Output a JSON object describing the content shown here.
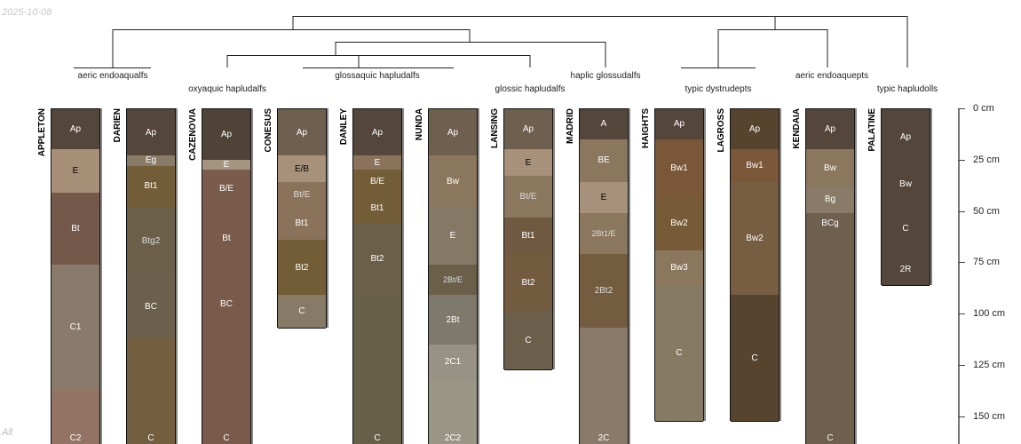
{
  "date_label": "2025-10-08",
  "corner_label": "All",
  "taxa": [
    "aeric endoaqualfs",
    "oxyaquic hapludalfs",
    "glossaquic hapludalfs",
    "glossic hapludalfs",
    "haplic glossudalfs",
    "typic dystrudepts",
    "aeric endoaquepts",
    "typic hapludolls"
  ],
  "depth_axis": {
    "unit": "cm",
    "ticks": [
      0,
      25,
      50,
      75,
      100,
      125,
      150
    ],
    "labels": [
      "0 cm",
      "25 cm",
      "50 cm",
      "75 cm",
      "100 cm",
      "125 cm",
      "150 cm"
    ]
  },
  "profiles": [
    {
      "name": "APPLETON",
      "horizons": [
        {
          "n": "Ap",
          "top": 0,
          "bot": 20,
          "c": "#54463a",
          "t": "#fff"
        },
        {
          "n": "E",
          "top": 20,
          "bot": 41,
          "c": "#a88f78",
          "t": "#000"
        },
        {
          "n": "Bt",
          "top": 41,
          "bot": 76,
          "c": "#74584a",
          "t": "#fff"
        },
        {
          "n": "C1",
          "top": 76,
          "bot": 137,
          "c": "#8a7a6b",
          "t": "#fff"
        },
        {
          "n": "C2",
          "top": 137,
          "bot": 180,
          "c": "#937464",
          "t": "#fff"
        }
      ]
    },
    {
      "name": "DARIEN",
      "horizons": [
        {
          "n": "Ap",
          "top": 0,
          "bot": 23,
          "c": "#54463a",
          "t": "#fff"
        },
        {
          "n": "Eg",
          "top": 23,
          "bot": 28,
          "c": "#8a7b69",
          "t": "#fff"
        },
        {
          "n": "Bt1",
          "top": 28,
          "bot": 48,
          "c": "#735c38",
          "t": "#fff"
        },
        {
          "n": "Btg2",
          "top": 48,
          "bot": 81,
          "c": "#6b5f4a",
          "t": "#ddd"
        },
        {
          "n": "BC",
          "top": 81,
          "bot": 112,
          "c": "#6a604b",
          "t": "#fff"
        },
        {
          "n": "C",
          "top": 112,
          "bot": 180,
          "c": "#735f40",
          "t": "#fff"
        }
      ]
    },
    {
      "name": "CAZENOVIA",
      "horizons": [
        {
          "n": "Ap",
          "top": 0,
          "bot": 25,
          "c": "#4f4236",
          "t": "#fff"
        },
        {
          "n": "E",
          "top": 25,
          "bot": 30,
          "c": "#a59480",
          "t": "#fff"
        },
        {
          "n": "B/E",
          "top": 30,
          "bot": 48,
          "c": "#7a5c4c",
          "t": "#fff"
        },
        {
          "n": "Bt",
          "top": 48,
          "bot": 79,
          "c": "#7a5a4b",
          "t": "#fff"
        },
        {
          "n": "BC",
          "top": 79,
          "bot": 112,
          "c": "#7a5a4b",
          "t": "#fff"
        },
        {
          "n": "C",
          "top": 112,
          "bot": 180,
          "c": "#7a5a4b",
          "t": "#fff"
        }
      ]
    },
    {
      "name": "CONESUS",
      "horizons": [
        {
          "n": "Ap",
          "top": 0,
          "bot": 23,
          "c": "#6f5f4f",
          "t": "#fff"
        },
        {
          "n": "E/B",
          "top": 23,
          "bot": 36,
          "c": "#a8917a",
          "t": "#000"
        },
        {
          "n": "Bt/E",
          "top": 36,
          "bot": 48,
          "c": "#8b735b",
          "t": "#ddd"
        },
        {
          "n": "Bt1",
          "top": 48,
          "bot": 64,
          "c": "#8b735b",
          "t": "#fff"
        },
        {
          "n": "Bt2",
          "top": 64,
          "bot": 91,
          "c": "#735d36",
          "t": "#fff"
        },
        {
          "n": "C",
          "top": 91,
          "bot": 107,
          "c": "#877a66",
          "t": "#fff"
        }
      ]
    },
    {
      "name": "DANLEY",
      "horizons": [
        {
          "n": "Ap",
          "top": 0,
          "bot": 23,
          "c": "#54463a",
          "t": "#fff"
        },
        {
          "n": "E",
          "top": 23,
          "bot": 30,
          "c": "#8b735b",
          "t": "#fff"
        },
        {
          "n": "B/E",
          "top": 30,
          "bot": 41,
          "c": "#735d36",
          "t": "#fff"
        },
        {
          "n": "Bt1",
          "top": 41,
          "bot": 56,
          "c": "#735d36",
          "t": "#fff"
        },
        {
          "n": "Bt2",
          "top": 56,
          "bot": 91,
          "c": "#6b5f4a",
          "t": "#fff"
        },
        {
          "n": "C",
          "top": 91,
          "bot": 180,
          "c": "#675f48",
          "t": "#fff"
        }
      ]
    },
    {
      "name": "NUNDA",
      "horizons": [
        {
          "n": "Ap",
          "top": 0,
          "bot": 23,
          "c": "#6f5f4f",
          "t": "#fff"
        },
        {
          "n": "Bw",
          "top": 23,
          "bot": 48,
          "c": "#8b775d",
          "t": "#fff"
        },
        {
          "n": "E",
          "top": 48,
          "bot": 76,
          "c": "#857966",
          "t": "#fff"
        },
        {
          "n": "2Bt/E",
          "top": 76,
          "bot": 91,
          "c": "#6b5f4a",
          "t": "#ddd"
        },
        {
          "n": "2Bt",
          "top": 91,
          "bot": 115,
          "c": "#7f796b",
          "t": "#fff"
        },
        {
          "n": "2C1",
          "top": 115,
          "bot": 132,
          "c": "#979283",
          "t": "#fff"
        },
        {
          "n": "2C2",
          "top": 132,
          "bot": 180,
          "c": "#9a9686",
          "t": "#fff"
        }
      ]
    },
    {
      "name": "LANSING",
      "horizons": [
        {
          "n": "Ap",
          "top": 0,
          "bot": 20,
          "c": "#6f5f4f",
          "t": "#fff"
        },
        {
          "n": "E",
          "top": 20,
          "bot": 33,
          "c": "#a8917a",
          "t": "#000"
        },
        {
          "n": "Bt/E",
          "top": 33,
          "bot": 53,
          "c": "#8b775d",
          "t": "#ddd"
        },
        {
          "n": "Bt1",
          "top": 53,
          "bot": 71,
          "c": "#6f5a41",
          "t": "#fff"
        },
        {
          "n": "Bt2",
          "top": 71,
          "bot": 99,
          "c": "#735b40",
          "t": "#fff"
        },
        {
          "n": "C",
          "top": 99,
          "bot": 127,
          "c": "#6b5f4b",
          "t": "#fff"
        }
      ]
    },
    {
      "name": "MADRID",
      "horizons": [
        {
          "n": "A",
          "top": 0,
          "bot": 15,
          "c": "#54463a",
          "t": "#fff"
        },
        {
          "n": "BE",
          "top": 15,
          "bot": 36,
          "c": "#8b775d",
          "t": "#fff"
        },
        {
          "n": "E",
          "top": 36,
          "bot": 51,
          "c": "#a8917a",
          "t": "#000"
        },
        {
          "n": "2Bt1/E",
          "top": 51,
          "bot": 71,
          "c": "#8b775d",
          "t": "#ddd"
        },
        {
          "n": "2Bt2",
          "top": 71,
          "bot": 107,
          "c": "#735c40",
          "t": "#ddd"
        },
        {
          "n": "2C",
          "top": 107,
          "bot": 180,
          "c": "#8a7a69",
          "t": "#fff"
        }
      ]
    },
    {
      "name": "HAIGHTS",
      "horizons": [
        {
          "n": "Ap",
          "top": 0,
          "bot": 15,
          "c": "#54463a",
          "t": "#fff"
        },
        {
          "n": "Bw1",
          "top": 15,
          "bot": 43,
          "c": "#7a5739",
          "t": "#fff"
        },
        {
          "n": "Bw2",
          "top": 43,
          "bot": 69,
          "c": "#775b36",
          "t": "#fff"
        },
        {
          "n": "Bw3",
          "top": 69,
          "bot": 86,
          "c": "#8b775d",
          "t": "#fff"
        },
        {
          "n": "C",
          "top": 86,
          "bot": 152,
          "c": "#857a64",
          "t": "#fff"
        }
      ]
    },
    {
      "name": "LAGROSS",
      "horizons": [
        {
          "n": "Ap",
          "top": 0,
          "bot": 20,
          "c": "#56442f",
          "t": "#fff"
        },
        {
          "n": "Bw1",
          "top": 20,
          "bot": 36,
          "c": "#7a5739",
          "t": "#fff"
        },
        {
          "n": "Bw2",
          "top": 36,
          "bot": 91,
          "c": "#775e43",
          "t": "#fff"
        },
        {
          "n": "C",
          "top": 91,
          "bot": 152,
          "c": "#56442e",
          "t": "#fff"
        }
      ]
    },
    {
      "name": "KENDAIA",
      "horizons": [
        {
          "n": "Ap",
          "top": 0,
          "bot": 20,
          "c": "#54463a",
          "t": "#fff"
        },
        {
          "n": "Bw",
          "top": 20,
          "bot": 38,
          "c": "#8b775d",
          "t": "#fff"
        },
        {
          "n": "Bg",
          "top": 38,
          "bot": 51,
          "c": "#8a7b69",
          "t": "#fff"
        },
        {
          "n": "BCg",
          "top": 51,
          "bot": 61,
          "c": "#6f5f4f",
          "t": "#fff"
        },
        {
          "n": "C",
          "top": 61,
          "bot": 180,
          "c": "#6f5f4d",
          "t": "#fff"
        }
      ]
    },
    {
      "name": "PALATINE",
      "horizons": [
        {
          "n": "Ap",
          "top": 0,
          "bot": 28,
          "c": "#54463a",
          "t": "#fff"
        },
        {
          "n": "Bw",
          "top": 28,
          "bot": 46,
          "c": "#54463a",
          "t": "#fff"
        },
        {
          "n": "C",
          "top": 46,
          "bot": 71,
          "c": "#54463a",
          "t": "#fff"
        },
        {
          "n": "2R",
          "top": 71,
          "bot": 86,
          "c": "#54463a",
          "t": "#fff"
        }
      ]
    }
  ]
}
